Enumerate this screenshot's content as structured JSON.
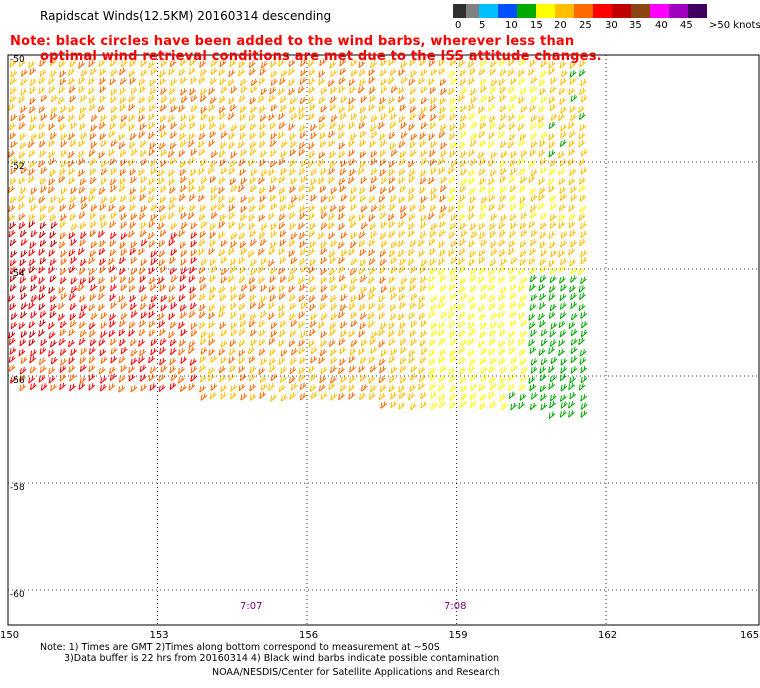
{
  "title": "Rapidscat Winds(12.5KM) 20160314 descending",
  "note_line1": "Note: black circles have been added to the wind barbs, wherever less than",
  "note_line2": "optimal wind retrieval conditions are met due to the ISS attitude changes.",
  "legend": {
    "colors": [
      "#303030",
      "#808080",
      "#00bfff",
      "#0050ff",
      "#00aa00",
      "#ffff00",
      "#ffbf00",
      "#ff6a00",
      "#ff0000",
      "#c00000",
      "#8b4513",
      "#ff00ff",
      "#a000c0",
      "#400060"
    ],
    "labels": [
      "0",
      "5",
      "10",
      "15",
      "20",
      "25",
      "30",
      "35",
      "40",
      "45",
      ">50 knots"
    ]
  },
  "axes": {
    "lat_labels": [
      "-50",
      "-52",
      "-54",
      "-56",
      "-58",
      "-60"
    ],
    "lon_labels": [
      "150",
      "153",
      "156",
      "159",
      "162",
      "165"
    ]
  },
  "times": [
    "7:07",
    "7:08"
  ],
  "footer_line1": "Note: 1) Times are GMT 2)Times along bottom correspond to measurement at ~50S",
  "footer_line2": "3)Data buffer is 22 hrs from 20160314 4) Black wind barbs indicate possible contamination",
  "footer_line3": "NOAA/NESDIS/Center for Satellite Applications and Research"
}
